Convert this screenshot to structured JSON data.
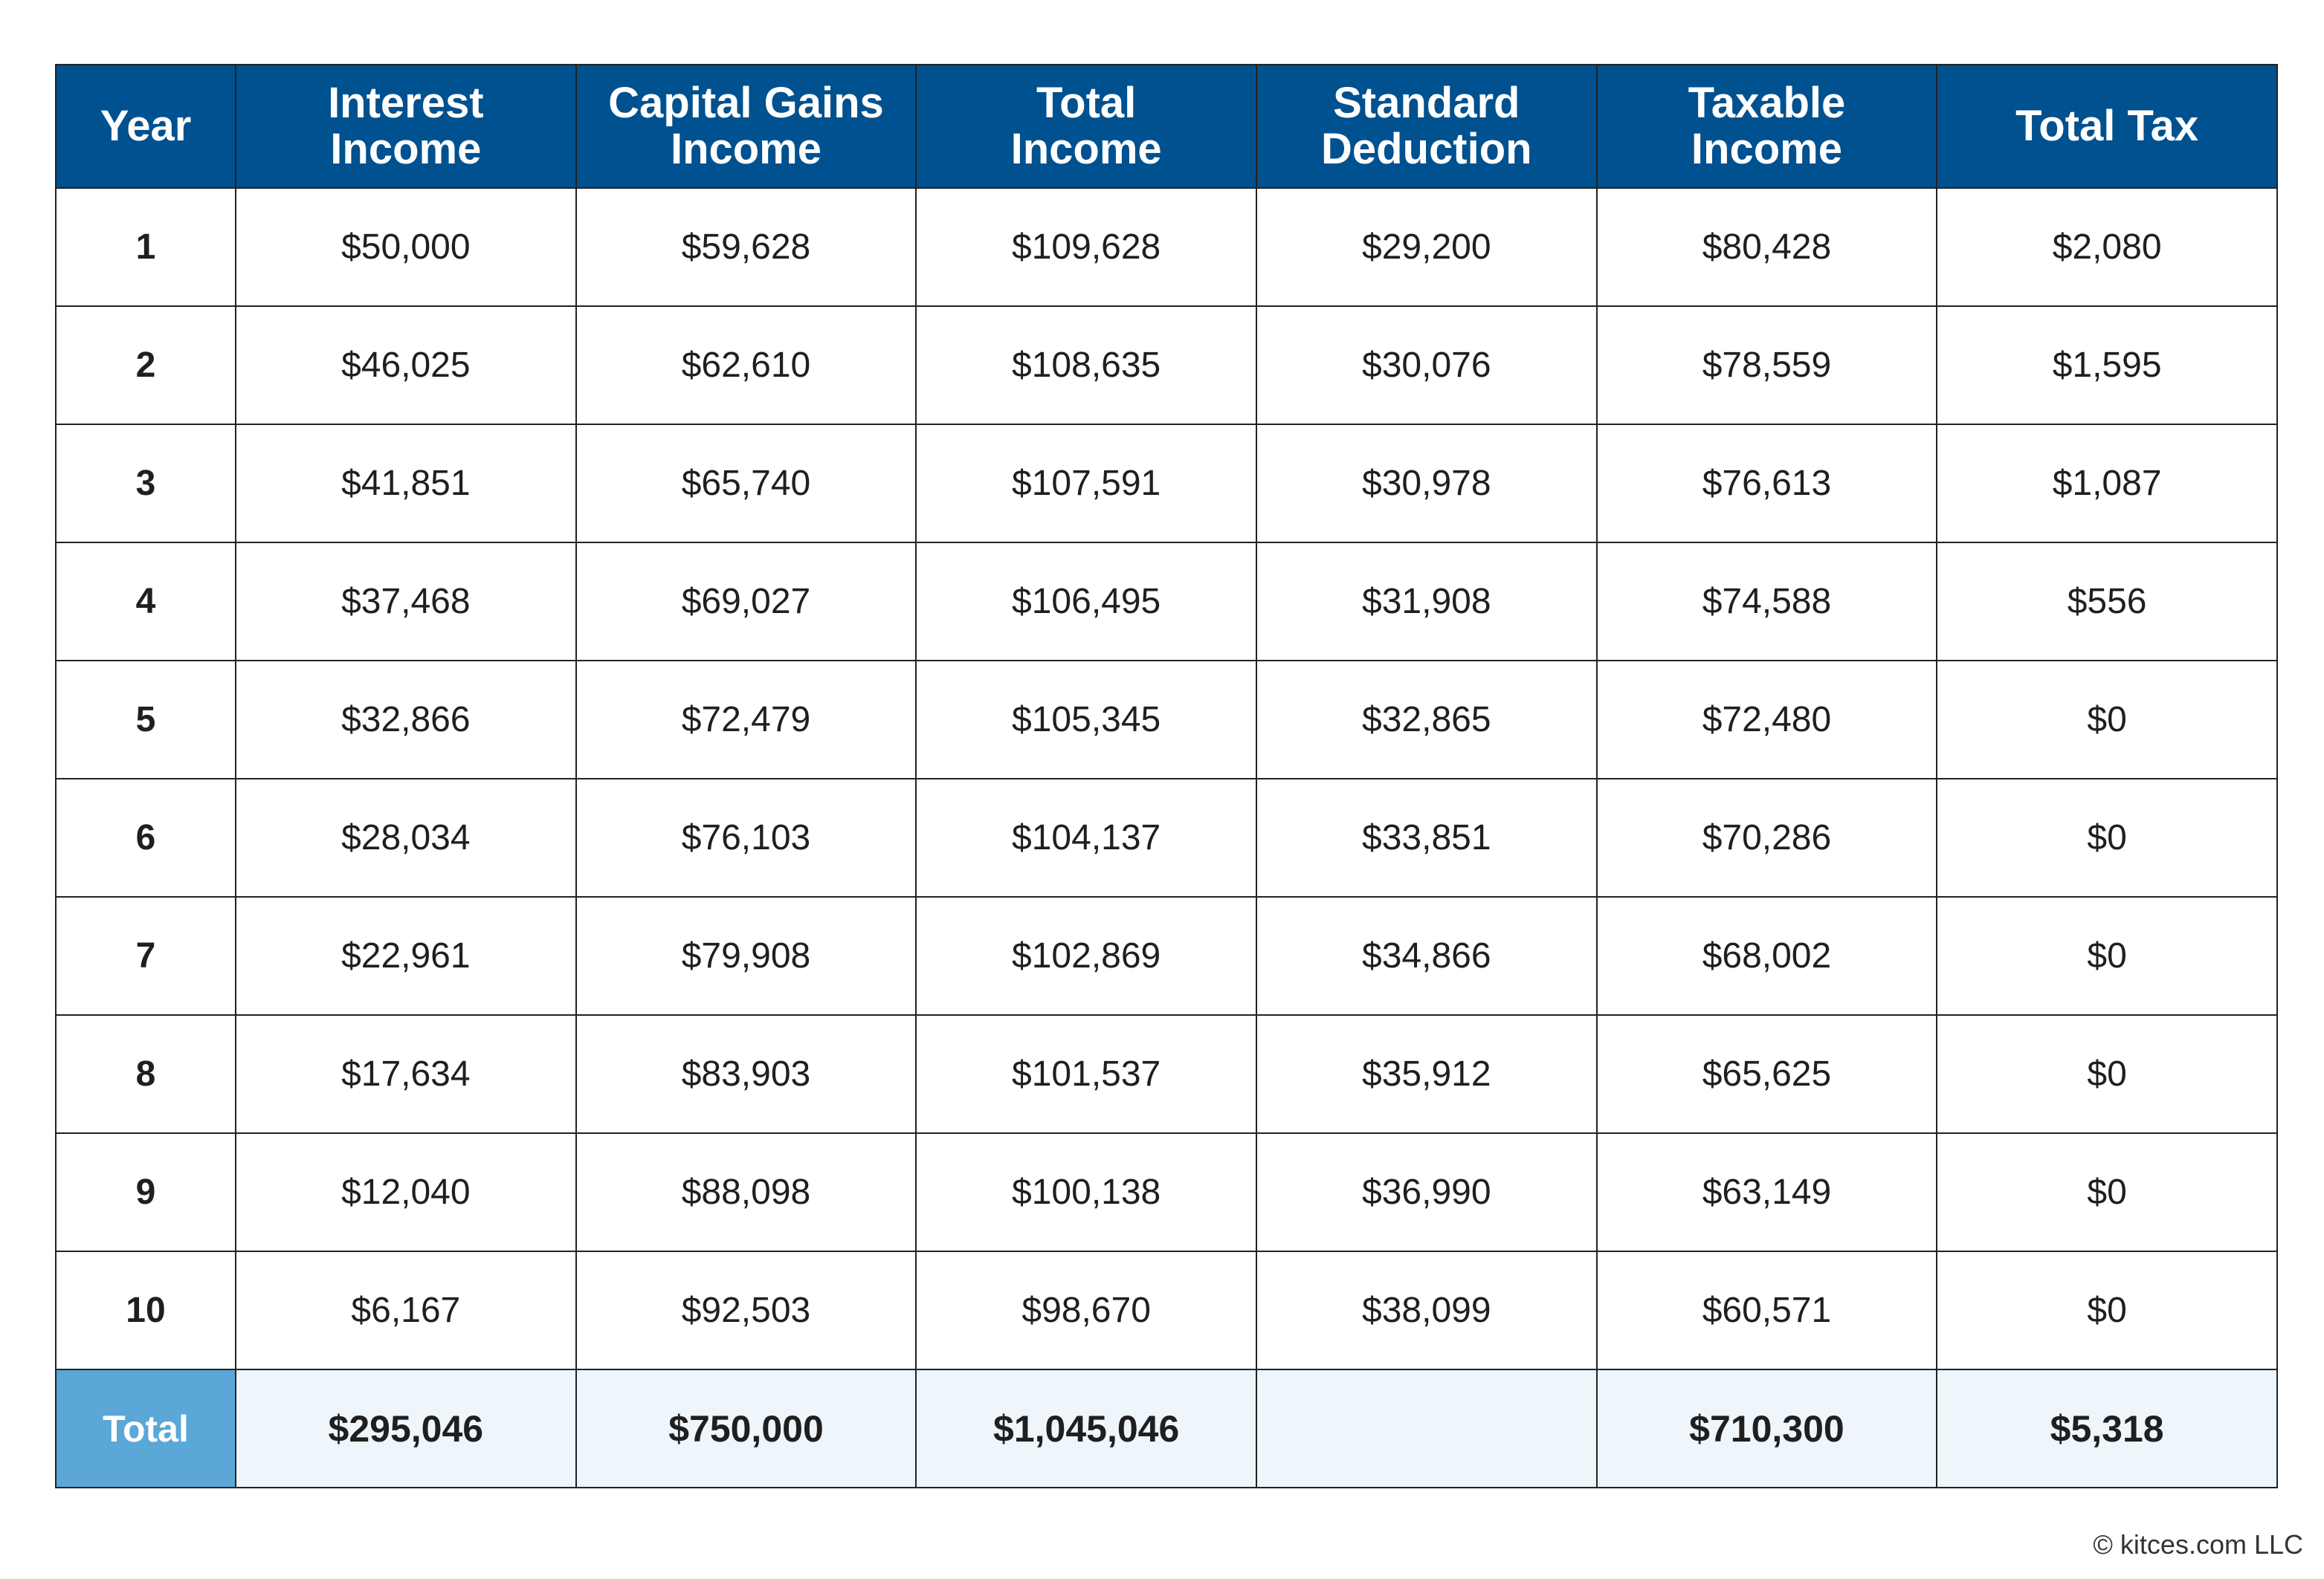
{
  "table": {
    "headers": [
      [
        "Year"
      ],
      [
        "Interest",
        "Income"
      ],
      [
        "Capital Gains",
        "Income"
      ],
      [
        "Total",
        "Income"
      ],
      [
        "Standard",
        "Deduction"
      ],
      [
        "Taxable",
        "Income"
      ],
      [
        "Total Tax"
      ]
    ],
    "rows": [
      [
        "1",
        "$50,000",
        "$59,628",
        "$109,628",
        "$29,200",
        "$80,428",
        "$2,080"
      ],
      [
        "2",
        "$46,025",
        "$62,610",
        "$108,635",
        "$30,076",
        "$78,559",
        "$1,595"
      ],
      [
        "3",
        "$41,851",
        "$65,740",
        "$107,591",
        "$30,978",
        "$76,613",
        "$1,087"
      ],
      [
        "4",
        "$37,468",
        "$69,027",
        "$106,495",
        "$31,908",
        "$74,588",
        "$556"
      ],
      [
        "5",
        "$32,866",
        "$72,479",
        "$105,345",
        "$32,865",
        "$72,480",
        "$0"
      ],
      [
        "6",
        "$28,034",
        "$76,103",
        "$104,137",
        "$33,851",
        "$70,286",
        "$0"
      ],
      [
        "7",
        "$22,961",
        "$79,908",
        "$102,869",
        "$34,866",
        "$68,002",
        "$0"
      ],
      [
        "8",
        "$17,634",
        "$83,903",
        "$101,537",
        "$35,912",
        "$65,625",
        "$0"
      ],
      [
        "9",
        "$12,040",
        "$88,098",
        "$100,138",
        "$36,990",
        "$63,149",
        "$0"
      ],
      [
        "10",
        "$6,167",
        "$92,503",
        "$98,670",
        "$38,099",
        "$60,571",
        "$0"
      ]
    ],
    "totals": [
      "Total",
      "$295,046",
      "$750,000",
      "$1,045,046",
      "",
      "$710,300",
      "$5,318"
    ]
  },
  "footer": {
    "copyright": "© kitces.com LLC"
  },
  "colors": {
    "header_bg": "#00518f",
    "total_label_bg": "#5aa7d8",
    "total_row_bg": "#eef5fb",
    "border": "#222222"
  }
}
